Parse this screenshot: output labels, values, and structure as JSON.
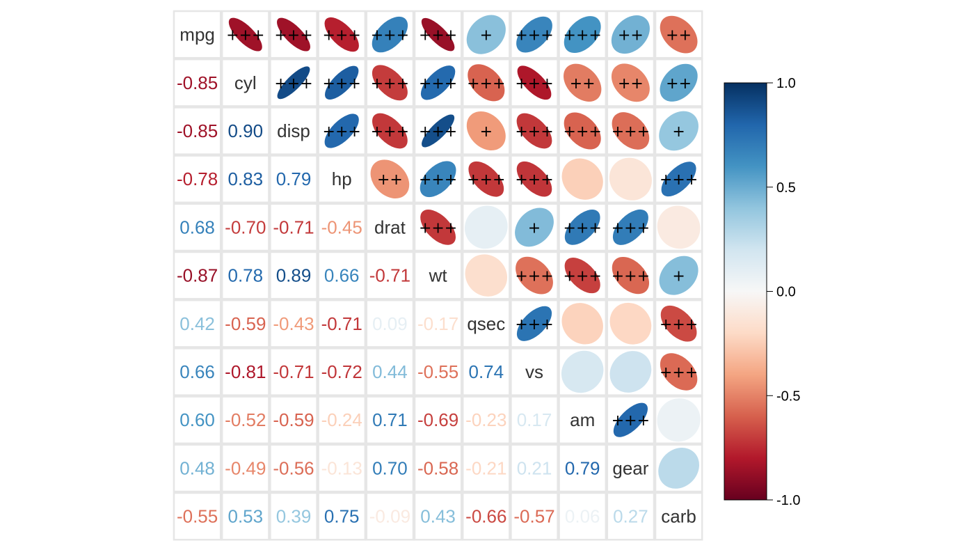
{
  "chart_data": {
    "type": "heatmap",
    "variables": [
      "mpg",
      "cyl",
      "disp",
      "hp",
      "drat",
      "wt",
      "qsec",
      "vs",
      "am",
      "gear",
      "carb"
    ],
    "lower_labels": [
      [],
      [
        "-0.85"
      ],
      [
        "-0.85",
        "0.90"
      ],
      [
        "-0.78",
        "0.83",
        "0.79"
      ],
      [
        "0.68",
        "-0.70",
        "-0.71",
        "-0.45"
      ],
      [
        "-0.87",
        "0.78",
        "0.89",
        "0.66",
        "-0.71"
      ],
      [
        "0.42",
        "-0.59",
        "-0.43",
        "-0.71",
        "0.09",
        "-0.17"
      ],
      [
        "0.66",
        "-0.81",
        "-0.71",
        "-0.72",
        "0.44",
        "-0.55",
        "0.74"
      ],
      [
        "0.60",
        "-0.52",
        "-0.59",
        "-0.24",
        "0.71",
        "-0.69",
        "-0.23",
        "0.17"
      ],
      [
        "0.48",
        "-0.49",
        "-0.56",
        "-0.13",
        "0.70",
        "-0.58",
        "-0.21",
        "0.21",
        "0.79"
      ],
      [
        "-0.55",
        "0.53",
        "0.39",
        "0.75",
        "-0.09",
        "0.43",
        "-0.66",
        "-0.57",
        "0.06",
        "0.27"
      ]
    ],
    "upper_stars": [
      [
        "",
        "+++",
        "+++",
        "+++",
        "+++",
        "+++",
        "+",
        "+++",
        "+++",
        "++",
        "++"
      ],
      [
        "",
        "",
        "+++",
        "+++",
        "+++",
        "+++",
        "+++",
        "+++",
        "++",
        "++",
        "++"
      ],
      [
        "",
        "",
        "",
        "+++",
        "+++",
        "+++",
        "+",
        "+++",
        "+++",
        "+++",
        "+"
      ],
      [
        "",
        "",
        "",
        "",
        "++",
        "+++",
        "+++",
        "+++",
        "",
        "",
        "+++"
      ],
      [
        "",
        "",
        "",
        "",
        "",
        "+++",
        "",
        "+",
        "+++",
        "+++",
        ""
      ],
      [
        "",
        "",
        "",
        "",
        "",
        "",
        "",
        "+++",
        "+++",
        "+++",
        "+"
      ],
      [
        "",
        "",
        "",
        "",
        "",
        "",
        "",
        "+++",
        "",
        "",
        "+++"
      ],
      [
        "",
        "",
        "",
        "",
        "",
        "",
        "",
        "",
        "",
        "",
        "+++"
      ],
      [
        "",
        "",
        "",
        "",
        "",
        "",
        "",
        "",
        "",
        "+++",
        ""
      ],
      [
        "",
        "",
        "",
        "",
        "",
        "",
        "",
        "",
        "",
        "",
        ""
      ],
      [
        "",
        "",
        "",
        "",
        "",
        "",
        "",
        "",
        "",
        "",
        ""
      ]
    ],
    "colorbar": {
      "range": [
        -1.0,
        1.0
      ],
      "ticks": [
        "1.0",
        "0.5",
        "0.0",
        "-0.5",
        "-1.0"
      ],
      "tick_values": [
        1.0,
        0.5,
        0.0,
        -0.5,
        -1.0
      ]
    },
    "colormap": [
      "#67001F",
      "#B2182B",
      "#D6604D",
      "#F4A582",
      "#FDDBC7",
      "#F7F7F7",
      "#D1E5F0",
      "#92C5DE",
      "#4393C3",
      "#2166AC",
      "#053061"
    ],
    "grid_color": "#e6e6e6",
    "label_color": "#333333"
  }
}
